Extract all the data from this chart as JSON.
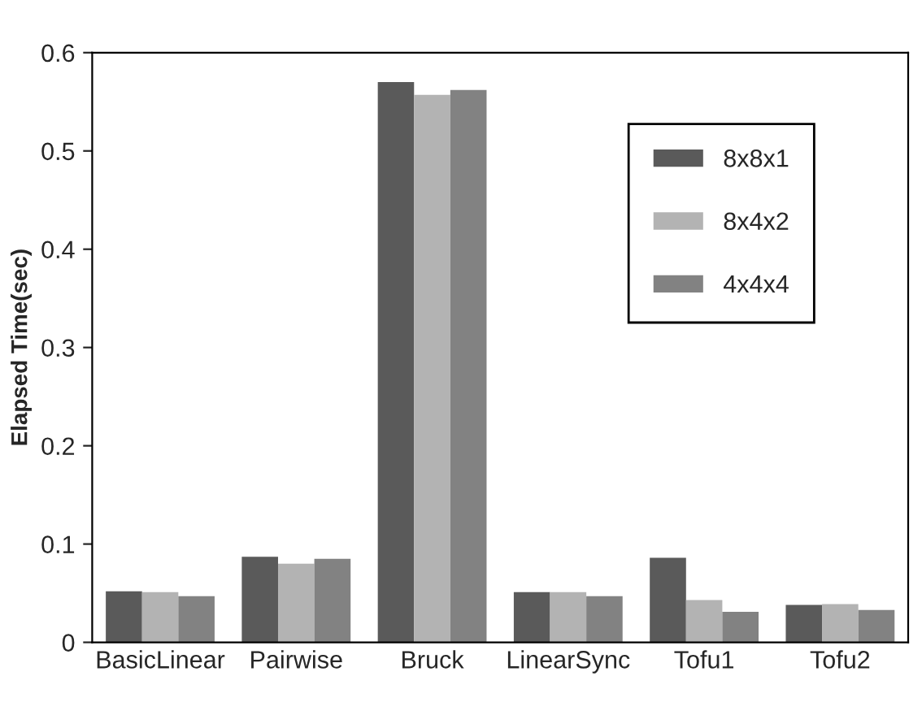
{
  "chart_data": {
    "type": "bar",
    "ylabel": "Elapsed Time(sec)",
    "categories": [
      "BasicLinear",
      "Pairwise",
      "Bruck",
      "LinearSync",
      "Tofu1",
      "Tofu2"
    ],
    "series": [
      {
        "name": "8x8x1",
        "color": "#5a5a5a",
        "values": [
          0.052,
          0.087,
          0.57,
          0.051,
          0.086,
          0.038
        ]
      },
      {
        "name": "8x4x2",
        "color": "#b3b3b3",
        "values": [
          0.051,
          0.08,
          0.557,
          0.051,
          0.043,
          0.039
        ]
      },
      {
        "name": "4x4x4",
        "color": "#828282",
        "values": [
          0.047,
          0.085,
          0.562,
          0.047,
          0.031,
          0.033
        ]
      }
    ],
    "ylim": [
      0,
      0.6
    ],
    "yticks": [
      {
        "value": 0,
        "label": "0"
      },
      0.1,
      0.2,
      0.3,
      0.4,
      0.5,
      0.6
    ],
    "grid": false,
    "legend": "top right"
  }
}
